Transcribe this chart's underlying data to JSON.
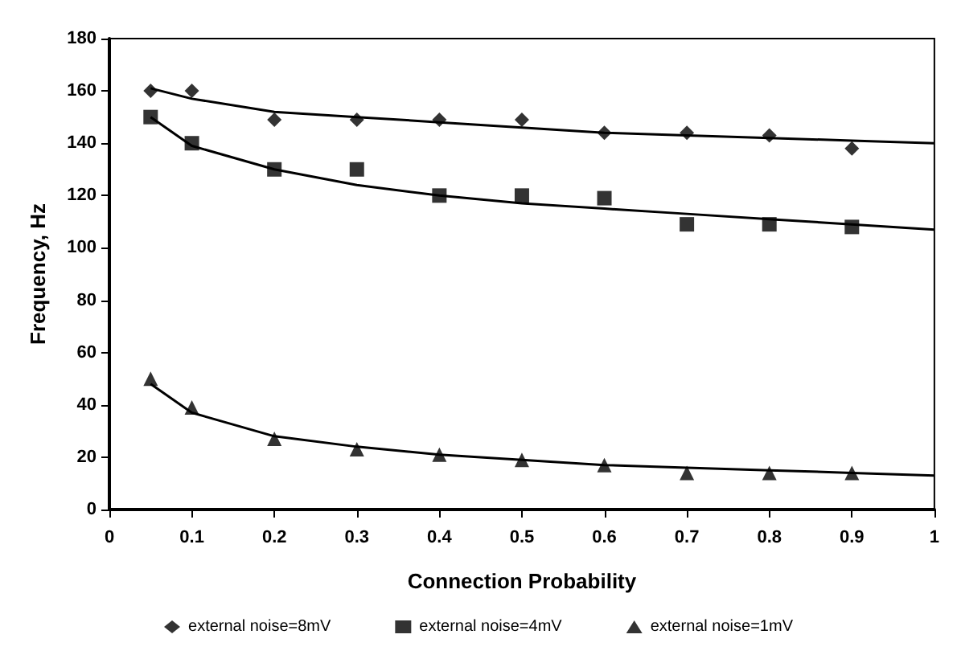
{
  "chart_data": {
    "type": "scatter",
    "xlabel": "Connection Probability",
    "ylabel": "Frequency, Hz",
    "x": [
      0.05,
      0.1,
      0.2,
      0.3,
      0.4,
      0.5,
      0.6,
      0.7,
      0.8,
      0.9
    ],
    "series": [
      {
        "name": "external noise=8mV",
        "color": "#000000",
        "marker": "diamond",
        "values": [
          160,
          160,
          149,
          149,
          149,
          149,
          144,
          144,
          143,
          138
        ]
      },
      {
        "name": "external noise=4mV",
        "color": "#000000",
        "marker": "square",
        "values": [
          150,
          140,
          130,
          130,
          120,
          120,
          119,
          109,
          109,
          108
        ]
      },
      {
        "name": "external noise=1mV",
        "color": "#000000",
        "marker": "triangle",
        "values": [
          50,
          39,
          27,
          23,
          21,
          19,
          17,
          14,
          14,
          14
        ]
      },
      {
        "type": "line",
        "color": "#000000",
        "marker": "none",
        "x": [
          0.05,
          0.1,
          0.2,
          0.3,
          0.4,
          0.5,
          0.6,
          0.7,
          0.8,
          0.9,
          1
        ],
        "values": [
          161,
          157,
          152,
          150,
          148,
          146,
          144,
          143,
          142,
          141,
          140
        ]
      },
      {
        "type": "line",
        "color": "#000000",
        "marker": "none",
        "x": [
          0.05,
          0.1,
          0.2,
          0.3,
          0.4,
          0.5,
          0.6,
          0.7,
          0.8,
          0.9,
          1
        ],
        "values": [
          150,
          139,
          130,
          124,
          120,
          117,
          115,
          113,
          111,
          109,
          107
        ]
      },
      {
        "type": "line",
        "color": "#000000",
        "marker": "none",
        "x": [
          0.05,
          0.1,
          0.2,
          0.3,
          0.4,
          0.5,
          0.6,
          0.7,
          0.8,
          0.9,
          1
        ],
        "values": [
          48,
          37,
          28,
          24,
          21,
          19,
          17,
          16,
          15,
          14,
          13
        ]
      }
    ],
    "xlim": [
      0,
      1
    ],
    "xticks": [
      0,
      0.1,
      0.2,
      0.3,
      0.4,
      0.5,
      0.6,
      0.7,
      0.8,
      0.9,
      1
    ],
    "ylim": [
      0,
      180
    ],
    "yticks": [
      0,
      20,
      40,
      60,
      80,
      100,
      120,
      140,
      160,
      180
    ],
    "grid": false,
    "legend": "bottom"
  }
}
